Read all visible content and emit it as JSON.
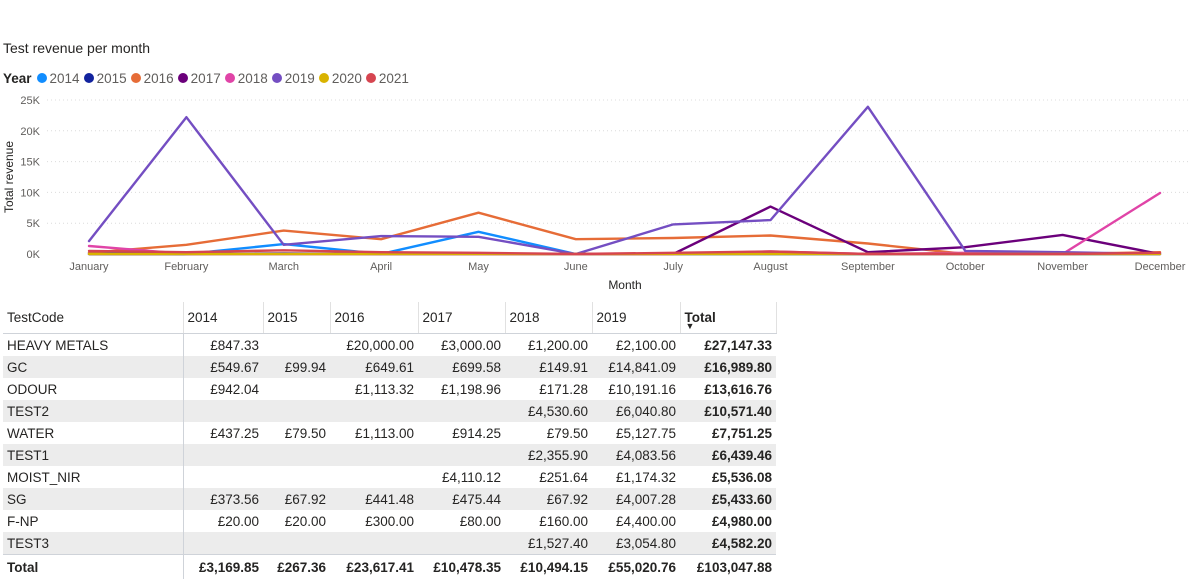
{
  "chart_data": {
    "type": "line",
    "title": "Test revenue per month",
    "legend_title": "Year",
    "legend_placement": "top-left",
    "xlabel": "Month",
    "ylabel": "Total revenue",
    "ylim": [
      0,
      25000
    ],
    "yticks": [
      {
        "value": 0,
        "label": "0K"
      },
      {
        "value": 5000,
        "label": "5K"
      },
      {
        "value": 10000,
        "label": "10K"
      },
      {
        "value": 15000,
        "label": "15K"
      },
      {
        "value": 20000,
        "label": "20K"
      },
      {
        "value": 25000,
        "label": "25K"
      }
    ],
    "grid": true,
    "categories": [
      "January",
      "February",
      "March",
      "April",
      "May",
      "June",
      "July",
      "August",
      "September",
      "October",
      "November",
      "December"
    ],
    "series": [
      {
        "name": "2014",
        "color": "#118dff",
        "values": [
          200,
          0,
          1600,
          0,
          3600,
          0,
          0,
          0,
          0,
          0,
          0,
          0
        ]
      },
      {
        "name": "2015",
        "color": "#12239e",
        "values": [
          0,
          0,
          100,
          0,
          0,
          0,
          0,
          0,
          0,
          0,
          0,
          0
        ]
      },
      {
        "name": "2016",
        "color": "#e66c37",
        "values": [
          200,
          1500,
          3800,
          2400,
          6700,
          2400,
          2600,
          3000,
          1700,
          0,
          0,
          300
        ]
      },
      {
        "name": "2017",
        "color": "#6b007b",
        "values": [
          0,
          0,
          0,
          0,
          0,
          0,
          0,
          7700,
          300,
          1100,
          3100,
          0
        ]
      },
      {
        "name": "2018",
        "color": "#e044a7",
        "values": [
          1300,
          0,
          0,
          0,
          0,
          0,
          0,
          400,
          0,
          200,
          0,
          9900
        ]
      },
      {
        "name": "2019",
        "color": "#744ec2",
        "values": [
          2100,
          22200,
          1500,
          2900,
          2800,
          0,
          4800,
          5500,
          23900,
          500,
          300,
          0
        ]
      },
      {
        "name": "2020",
        "color": "#d9b300",
        "values": [
          0,
          0,
          0,
          0,
          0,
          0,
          0,
          0,
          0,
          0,
          0,
          0
        ]
      },
      {
        "name": "2021",
        "color": "#d64550",
        "values": [
          500,
          300,
          600,
          300,
          200,
          0,
          200,
          400,
          0,
          0,
          0,
          200
        ]
      }
    ]
  },
  "table": {
    "headers": [
      "TestCode",
      "2014",
      "2015",
      "2016",
      "2017",
      "2018",
      "2019",
      "Total"
    ],
    "sort_icon": "▼",
    "rows": [
      [
        "HEAVY METALS",
        "£847.33",
        "",
        "£20,000.00",
        "£3,000.00",
        "£1,200.00",
        "£2,100.00",
        "£27,147.33"
      ],
      [
        "GC",
        "£549.67",
        "£99.94",
        "£649.61",
        "£699.58",
        "£149.91",
        "£14,841.09",
        "£16,989.80"
      ],
      [
        "ODOUR",
        "£942.04",
        "",
        "£1,113.32",
        "£1,198.96",
        "£171.28",
        "£10,191.16",
        "£13,616.76"
      ],
      [
        "TEST2",
        "",
        "",
        "",
        "",
        "£4,530.60",
        "£6,040.80",
        "£10,571.40"
      ],
      [
        "WATER",
        "£437.25",
        "£79.50",
        "£1,113.00",
        "£914.25",
        "£79.50",
        "£5,127.75",
        "£7,751.25"
      ],
      [
        "TEST1",
        "",
        "",
        "",
        "",
        "£2,355.90",
        "£4,083.56",
        "£6,439.46"
      ],
      [
        "MOIST_NIR",
        "",
        "",
        "",
        "£4,110.12",
        "£251.64",
        "£1,174.32",
        "£5,536.08"
      ],
      [
        "SG",
        "£373.56",
        "£67.92",
        "£441.48",
        "£475.44",
        "£67.92",
        "£4,007.28",
        "£5,433.60"
      ],
      [
        "F-NP",
        "£20.00",
        "£20.00",
        "£300.00",
        "£80.00",
        "£160.00",
        "£4,400.00",
        "£4,980.00"
      ],
      [
        "TEST3",
        "",
        "",
        "",
        "",
        "£1,527.40",
        "£3,054.80",
        "£4,582.20"
      ]
    ],
    "total_row": [
      "Total",
      "£3,169.85",
      "£267.36",
      "£23,617.41",
      "£10,478.35",
      "£10,494.15",
      "£55,020.76",
      "£103,047.88"
    ]
  }
}
